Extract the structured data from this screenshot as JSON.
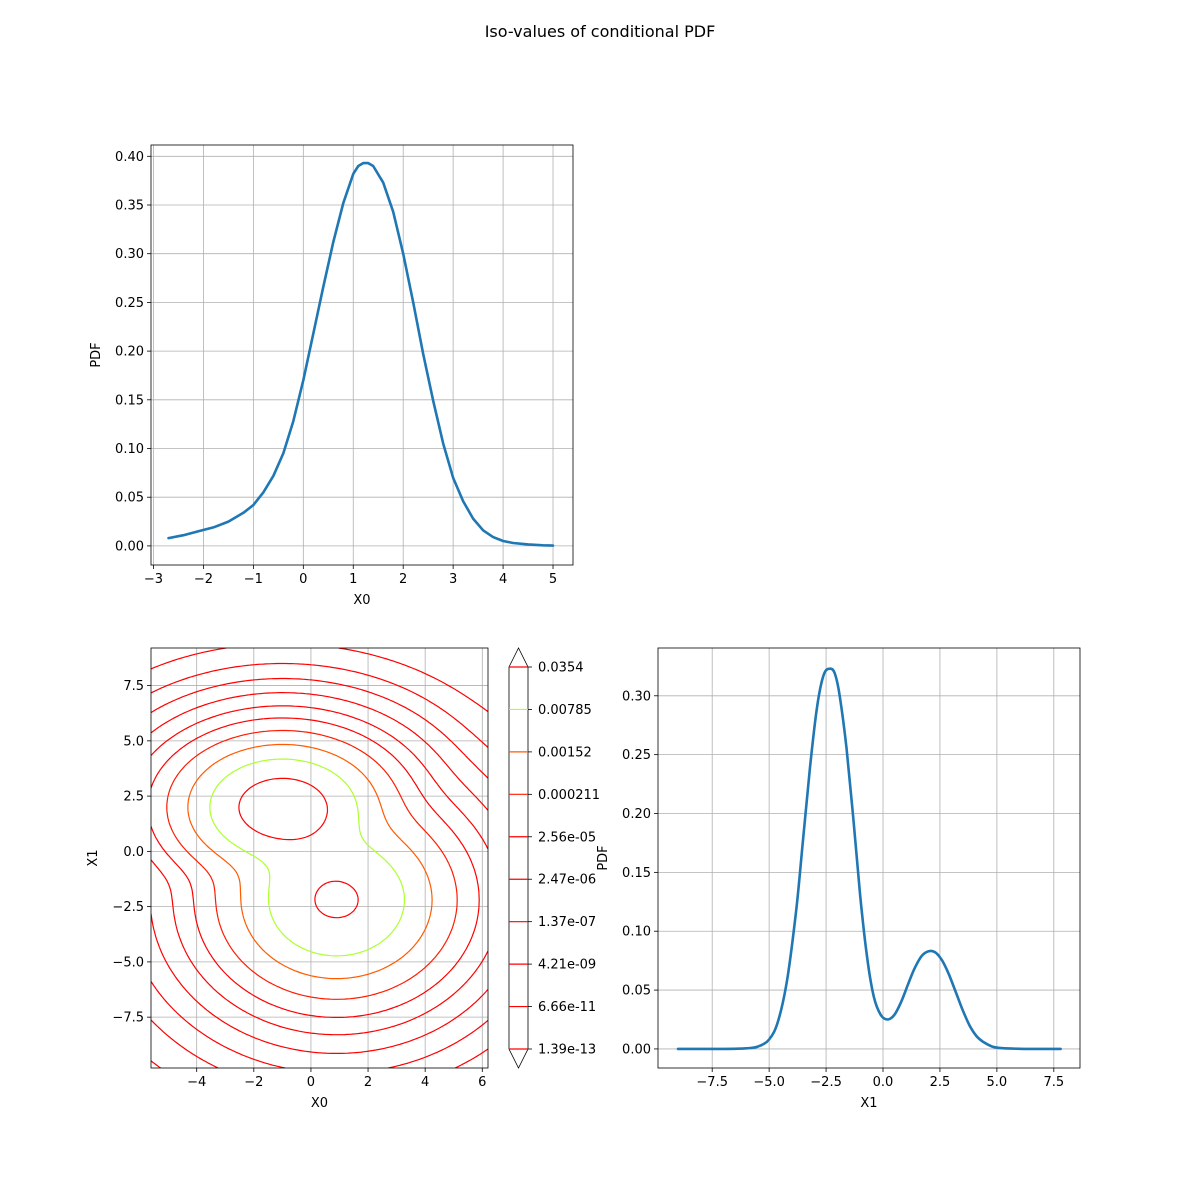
{
  "figure": {
    "title": "Iso-values of conditional PDF"
  },
  "chart_data": [
    {
      "id": "marginal_x0",
      "type": "line",
      "xlabel": "X0",
      "ylabel": "PDF",
      "xlim": [
        -3.05,
        5.4
      ],
      "ylim": [
        -0.0196,
        0.4116
      ],
      "xticks": [
        -3,
        -2,
        -1,
        0,
        1,
        2,
        3,
        4,
        5
      ],
      "xtick_labels": [
        "−3",
        "−2",
        "−1",
        "0",
        "1",
        "2",
        "3",
        "4",
        "5"
      ],
      "yticks": [
        0.0,
        0.05,
        0.1,
        0.15,
        0.2,
        0.25,
        0.3,
        0.35,
        0.4
      ],
      "ytick_labels": [
        "0.00",
        "0.05",
        "0.10",
        "0.15",
        "0.20",
        "0.25",
        "0.30",
        "0.35",
        "0.40"
      ],
      "grid": true,
      "color": "#1f77b4",
      "x": [
        -2.7,
        -2.4,
        -2.1,
        -1.8,
        -1.5,
        -1.2,
        -1.0,
        -0.8,
        -0.6,
        -0.4,
        -0.2,
        0.0,
        0.2,
        0.4,
        0.6,
        0.8,
        1.0,
        1.1,
        1.2,
        1.3,
        1.4,
        1.6,
        1.8,
        2.0,
        2.2,
        2.4,
        2.6,
        2.8,
        3.0,
        3.2,
        3.4,
        3.6,
        3.8,
        4.0,
        4.2,
        4.5,
        4.8,
        5.0
      ],
      "y": [
        0.008,
        0.011,
        0.015,
        0.019,
        0.025,
        0.034,
        0.042,
        0.055,
        0.072,
        0.095,
        0.128,
        0.17,
        0.218,
        0.266,
        0.312,
        0.352,
        0.382,
        0.39,
        0.393,
        0.393,
        0.39,
        0.373,
        0.343,
        0.3,
        0.25,
        0.197,
        0.149,
        0.105,
        0.07,
        0.046,
        0.028,
        0.016,
        0.009,
        0.005,
        0.003,
        0.0015,
        0.0006,
        0.0003
      ]
    },
    {
      "id": "iso_contours",
      "type": "contour",
      "xlabel": "X0",
      "ylabel": "X1",
      "xlim": [
        -5.6,
        6.2
      ],
      "ylim": [
        -9.8,
        9.2
      ],
      "xticks": [
        -4,
        -2,
        0,
        2,
        4,
        6
      ],
      "xtick_labels": [
        "−4",
        "−2",
        "0",
        "2",
        "4",
        "6"
      ],
      "yticks": [
        -7.5,
        -5.0,
        -2.5,
        0.0,
        2.5,
        5.0,
        7.5
      ],
      "ytick_labels": [
        "−7.5",
        "−5.0",
        "−2.5",
        "0.0",
        "2.5",
        "5.0",
        "7.5"
      ],
      "grid": true,
      "levels": [
        "1.39e-13",
        "6.66e-11",
        "4.21e-09",
        "1.37e-07",
        "2.47e-06",
        "2.56e-05",
        "0.000211",
        "0.00152",
        "0.00785",
        "0.0354"
      ],
      "colorbar_extend": "both",
      "level_colors": [
        "#ff0000",
        "#ff0000",
        "#ff0000",
        "#ff0000",
        "#ff0000",
        "#ff0000",
        "#ff1c00",
        "#ff5a00",
        "#adff2f",
        "#ff0000"
      ],
      "modes": [
        {
          "center": [
            -1.0,
            2.0
          ],
          "radius": [
            1.1,
            0.9
          ],
          "rotation": 0
        },
        {
          "center": [
            0.9,
            -2.2
          ],
          "radius": [
            1.4,
            1.4
          ],
          "rotation": 0
        }
      ]
    },
    {
      "id": "marginal_x1",
      "type": "line",
      "xlabel": "X1",
      "ylabel": "PDF",
      "xlim": [
        -9.88,
        8.65
      ],
      "ylim": [
        -0.0162,
        0.3406
      ],
      "xticks": [
        -7.5,
        -5.0,
        -2.5,
        0.0,
        2.5,
        5.0,
        7.5
      ],
      "xtick_labels": [
        "−7.5",
        "−5.0",
        "−2.5",
        "0.0",
        "2.5",
        "5.0",
        "7.5"
      ],
      "yticks": [
        0.0,
        0.05,
        0.1,
        0.15,
        0.2,
        0.25,
        0.3
      ],
      "ytick_labels": [
        "0.00",
        "0.05",
        "0.10",
        "0.15",
        "0.20",
        "0.25",
        "0.30"
      ],
      "grid": true,
      "color": "#1f77b4",
      "x": [
        -9.0,
        -7.0,
        -6.0,
        -5.5,
        -5.0,
        -4.6,
        -4.2,
        -3.8,
        -3.5,
        -3.2,
        -2.9,
        -2.6,
        -2.3,
        -2.1,
        -1.9,
        -1.6,
        -1.3,
        -1.0,
        -0.7,
        -0.4,
        -0.1,
        0.2,
        0.5,
        0.8,
        1.1,
        1.4,
        1.7,
        2.0,
        2.3,
        2.6,
        2.9,
        3.2,
        3.5,
        3.8,
        4.1,
        4.4,
        4.8,
        5.2,
        6.0,
        7.0,
        7.8
      ],
      "y": [
        0.0,
        0.0,
        0.0005,
        0.002,
        0.008,
        0.024,
        0.06,
        0.12,
        0.18,
        0.24,
        0.29,
        0.318,
        0.323,
        0.318,
        0.3,
        0.255,
        0.195,
        0.13,
        0.078,
        0.044,
        0.029,
        0.025,
        0.029,
        0.04,
        0.055,
        0.069,
        0.079,
        0.083,
        0.082,
        0.075,
        0.063,
        0.048,
        0.033,
        0.02,
        0.011,
        0.006,
        0.002,
        0.0007,
        0.0001,
        0.0,
        0.0
      ]
    }
  ]
}
